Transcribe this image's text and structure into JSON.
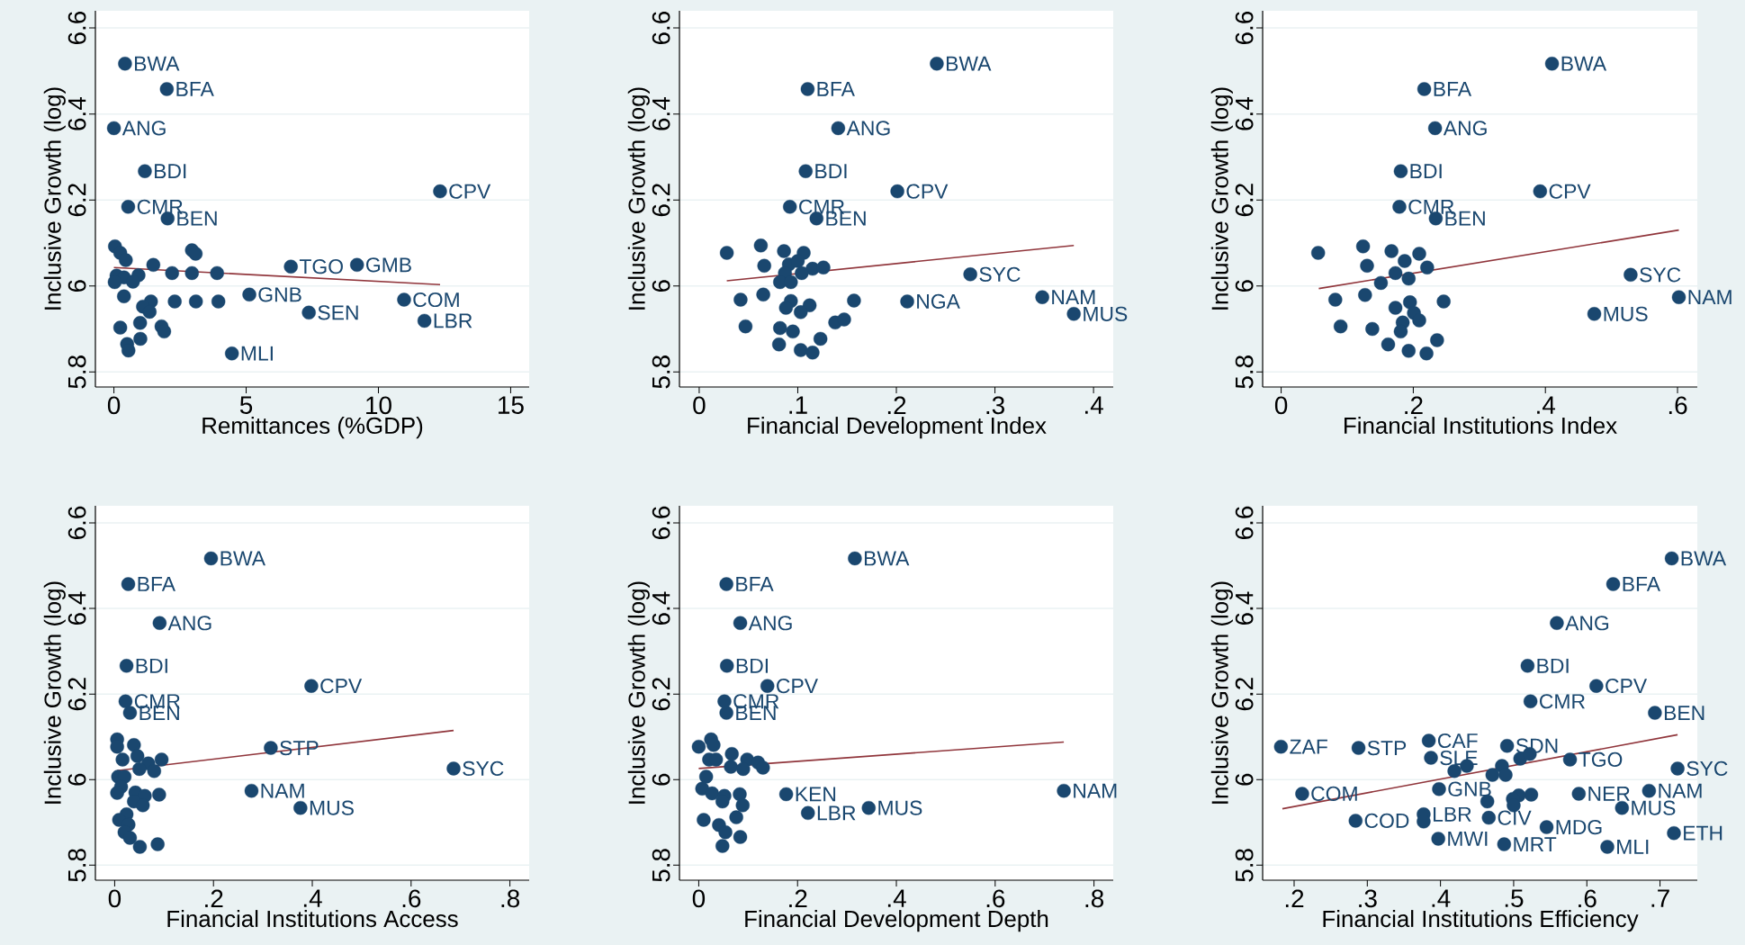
{
  "chart_data": [
    {
      "type": "scatter",
      "xlabel": "Remittances (%GDP)",
      "ylabel": "Inclusive Growth (log)",
      "xlim": [
        -0.7,
        15.7
      ],
      "ylim": [
        5.765,
        6.64
      ],
      "xticks": [
        0,
        5,
        10,
        15
      ],
      "yticks": [
        5.8,
        6,
        6.2,
        6.4,
        6.6
      ],
      "grid": "y",
      "marker": "circle",
      "series": [
        {
          "color": "#1a476f",
          "x": [
            0.42,
            2.0,
            0.0,
            1.17,
            0.54,
            2.03,
            12.33,
            0.04,
            0.24,
            0.45,
            2.95,
            3.09,
            1.49,
            6.69,
            9.19,
            3.9,
            0.1,
            0.38,
            0.93,
            2.2,
            2.95,
            0.03,
            0.72,
            0.38,
            5.12,
            10.97,
            3.95,
            2.3,
            1.4,
            3.1,
            1.1,
            1.35,
            7.37,
            11.74,
            0.99,
            0.24,
            1.8,
            1.9,
            0.5,
            1.0,
            0.55,
            4.46
          ],
          "values": [
            6.517,
            6.458,
            6.367,
            6.267,
            6.184,
            6.157,
            6.22,
            6.092,
            6.077,
            6.06,
            6.083,
            6.075,
            6.049,
            6.045,
            6.049,
            6.03,
            6.024,
            6.02,
            6.025,
            6.03,
            6.03,
            6.009,
            6.01,
            5.976,
            5.98,
            5.968,
            5.964,
            5.964,
            5.964,
            5.964,
            5.952,
            5.94,
            5.938,
            5.919,
            5.914,
            5.903,
            5.906,
            5.894,
            5.865,
            5.877,
            5.85,
            5.843
          ]
        },
        {
          "type": "line",
          "marker": "none",
          "color": "#90353b",
          "x": [
            0,
            12.33
          ],
          "values": [
            6.043,
            6.003
          ]
        }
      ],
      "annotations": [
        {
          "text": "BWA",
          "x": 0.42,
          "y": 6.517
        },
        {
          "text": "BFA",
          "x": 2.0,
          "y": 6.458
        },
        {
          "text": "ANG",
          "x": 0.0,
          "y": 6.367
        },
        {
          "text": "BDI",
          "x": 1.17,
          "y": 6.267
        },
        {
          "text": "CMR",
          "x": 0.54,
          "y": 6.184
        },
        {
          "text": "BEN",
          "x": 2.03,
          "y": 6.157
        },
        {
          "text": "CPV",
          "x": 12.33,
          "y": 6.22
        },
        {
          "text": "TGO",
          "x": 6.69,
          "y": 6.045
        },
        {
          "text": "GMB",
          "x": 9.19,
          "y": 6.049
        },
        {
          "text": "GNB",
          "x": 5.12,
          "y": 5.98
        },
        {
          "text": "COM",
          "x": 10.97,
          "y": 5.968
        },
        {
          "text": "SEN",
          "x": 7.37,
          "y": 5.938
        },
        {
          "text": "LBR",
          "x": 11.74,
          "y": 5.919
        },
        {
          "text": "MLI",
          "x": 4.46,
          "y": 5.843
        }
      ]
    },
    {
      "type": "scatter",
      "xlabel": "Financial Development Index",
      "ylabel": "Inclusive Growth (log)",
      "xlim": [
        -0.02,
        0.42
      ],
      "ylim": [
        5.765,
        6.64
      ],
      "xticks": [
        0,
        {
          "value": 0.1,
          "label": ".1"
        },
        {
          "value": 0.2,
          "label": ".2"
        },
        {
          "value": 0.3,
          "label": ".3"
        },
        {
          "value": 0.4,
          "label": ".4"
        }
      ],
      "yticks": [
        5.8,
        6,
        6.2,
        6.4,
        6.6
      ],
      "grid": "y",
      "marker": "circle",
      "series": [
        {
          "color": "#1a476f",
          "x": [
            0.241,
            0.11,
            0.141,
            0.108,
            0.201,
            0.092,
            0.119,
            0.0625,
            0.028,
            0.086,
            0.106,
            0.066,
            0.091,
            0.1,
            0.115,
            0.126,
            0.087,
            0.104,
            0.082,
            0.093,
            0.275,
            0.348,
            0.38,
            0.211,
            0.157,
            0.042,
            0.065,
            0.093,
            0.112,
            0.088,
            0.103,
            0.138,
            0.147,
            0.047,
            0.082,
            0.095,
            0.123,
            0.081,
            0.103,
            0.115
          ],
          "values": [
            6.517,
            6.458,
            6.367,
            6.267,
            6.22,
            6.184,
            6.157,
            6.094,
            6.077,
            6.081,
            6.077,
            6.047,
            6.05,
            6.058,
            6.04,
            6.043,
            6.03,
            6.03,
            6.009,
            6.009,
            6.027,
            5.974,
            5.935,
            5.964,
            5.966,
            5.968,
            5.98,
            5.965,
            5.955,
            5.949,
            5.939,
            5.915,
            5.922,
            5.906,
            5.902,
            5.894,
            5.877,
            5.864,
            5.851,
            5.845
          ]
        },
        {
          "type": "line",
          "marker": "none",
          "color": "#90353b",
          "x": [
            0.028,
            0.38
          ],
          "values": [
            6.012,
            6.094
          ]
        }
      ],
      "annotations": [
        {
          "text": "BWA",
          "x": 0.241,
          "y": 6.517
        },
        {
          "text": "BFA",
          "x": 0.11,
          "y": 6.458
        },
        {
          "text": "ANG",
          "x": 0.141,
          "y": 6.367
        },
        {
          "text": "BDI",
          "x": 0.108,
          "y": 6.267
        },
        {
          "text": "CPV",
          "x": 0.201,
          "y": 6.22
        },
        {
          "text": "CMR",
          "x": 0.092,
          "y": 6.184
        },
        {
          "text": "BEN",
          "x": 0.119,
          "y": 6.157
        },
        {
          "text": "SYC",
          "x": 0.275,
          "y": 6.027
        },
        {
          "text": "NAM",
          "x": 0.348,
          "y": 5.974
        },
        {
          "text": "MUS",
          "x": 0.38,
          "y": 5.935
        },
        {
          "text": "NGA",
          "x": 0.211,
          "y": 5.964
        }
      ]
    },
    {
      "type": "scatter",
      "xlabel": "Financial Institutions Index",
      "ylabel": "Inclusive Growth (log)",
      "xlim": [
        -0.028,
        0.63
      ],
      "ylim": [
        5.765,
        6.64
      ],
      "xticks": [
        0,
        {
          "value": 0.2,
          "label": ".2"
        },
        {
          "value": 0.4,
          "label": ".4"
        },
        {
          "value": 0.6,
          "label": ".6"
        }
      ],
      "yticks": [
        5.8,
        6,
        6.2,
        6.4,
        6.6
      ],
      "grid": "y",
      "marker": "circle",
      "series": [
        {
          "color": "#1a476f",
          "x": [
            0.41,
            0.2166,
            0.233,
            0.181,
            0.392,
            0.179,
            0.234,
            0.124,
            0.056,
            0.167,
            0.209,
            0.13,
            0.187,
            0.221,
            0.173,
            0.193,
            0.151,
            0.529,
            0.602,
            0.474,
            0.082,
            0.127,
            0.173,
            0.195,
            0.246,
            0.201,
            0.209,
            0.09,
            0.138,
            0.184,
            0.181,
            0.236,
            0.162,
            0.193,
            0.22
          ],
          "values": [
            6.517,
            6.458,
            6.367,
            6.267,
            6.22,
            6.184,
            6.157,
            6.092,
            6.077,
            6.081,
            6.075,
            6.047,
            6.058,
            6.043,
            6.03,
            6.017,
            6.007,
            6.026,
            5.974,
            5.935,
            5.968,
            5.979,
            5.949,
            5.962,
            5.964,
            5.937,
            5.92,
            5.906,
            5.9,
            5.915,
            5.894,
            5.874,
            5.864,
            5.849,
            5.843
          ]
        },
        {
          "type": "line",
          "marker": "none",
          "color": "#90353b",
          "x": [
            0.057,
            0.602
          ],
          "values": [
            5.994,
            6.13
          ]
        }
      ],
      "annotations": [
        {
          "text": "BWA",
          "x": 0.41,
          "y": 6.517
        },
        {
          "text": "BFA",
          "x": 0.2166,
          "y": 6.458
        },
        {
          "text": "ANG",
          "x": 0.233,
          "y": 6.367
        },
        {
          "text": "BDI",
          "x": 0.181,
          "y": 6.267
        },
        {
          "text": "CPV",
          "x": 0.392,
          "y": 6.22
        },
        {
          "text": "CMR",
          "x": 0.179,
          "y": 6.184
        },
        {
          "text": "BEN",
          "x": 0.234,
          "y": 6.157
        },
        {
          "text": "SYC",
          "x": 0.529,
          "y": 6.026
        },
        {
          "text": "NAM",
          "x": 0.602,
          "y": 5.974
        },
        {
          "text": "MUS",
          "x": 0.474,
          "y": 5.935
        }
      ]
    },
    {
      "type": "scatter",
      "xlabel": "Financial Institutions Access",
      "ylabel": "Inclusive Growth (log)",
      "xlim": [
        -0.039,
        0.839
      ],
      "ylim": [
        5.765,
        6.64
      ],
      "xticks": [
        0,
        {
          "value": 0.2,
          "label": ".2"
        },
        {
          "value": 0.4,
          "label": ".4"
        },
        {
          "value": 0.6,
          "label": ".6"
        },
        {
          "value": 0.8,
          "label": ".8"
        }
      ],
      "yticks": [
        5.8,
        6,
        6.2,
        6.4,
        6.6
      ],
      "grid": "y",
      "marker": "circle",
      "series": [
        {
          "color": "#1a476f",
          "x": [
            0.195,
            0.0275,
            0.091,
            0.024,
            0.398,
            0.022,
            0.031,
            0.005,
            0.005,
            0.039,
            0.316,
            0.686,
            0.277,
            0.376,
            0.016,
            0.046,
            0.068,
            0.095,
            0.05,
            0.08,
            0.007,
            0.02,
            0.013,
            0.042,
            0.061,
            0.005,
            0.09,
            0.039,
            0.057,
            0.024,
            0.009,
            0.028,
            0.02,
            0.031,
            0.051,
            0.087
          ],
          "values": [
            6.517,
            6.457,
            6.366,
            6.266,
            6.219,
            6.183,
            6.156,
            6.094,
            6.077,
            6.081,
            6.074,
            6.026,
            5.974,
            5.934,
            6.047,
            6.055,
            6.038,
            6.047,
            6.025,
            6.02,
            6.007,
            6.007,
            5.983,
            5.97,
            5.962,
            5.969,
            5.965,
            5.949,
            5.94,
            5.919,
            5.906,
            5.895,
            5.877,
            5.864,
            5.843,
            5.849
          ]
        },
        {
          "type": "line",
          "marker": "none",
          "color": "#90353b",
          "x": [
            0.005,
            0.686
          ],
          "values": [
            6.021,
            6.115
          ]
        }
      ],
      "annotations": [
        {
          "text": "BWA",
          "x": 0.195,
          "y": 6.517
        },
        {
          "text": "BFA",
          "x": 0.0275,
          "y": 6.457
        },
        {
          "text": "ANG",
          "x": 0.091,
          "y": 6.366
        },
        {
          "text": "BDI",
          "x": 0.024,
          "y": 6.266
        },
        {
          "text": "CPV",
          "x": 0.398,
          "y": 6.219
        },
        {
          "text": "CMR",
          "x": 0.022,
          "y": 6.183
        },
        {
          "text": "BEN",
          "x": 0.031,
          "y": 6.156
        },
        {
          "text": "STP",
          "x": 0.316,
          "y": 6.074
        },
        {
          "text": "SYC",
          "x": 0.686,
          "y": 6.026
        },
        {
          "text": "NAM",
          "x": 0.277,
          "y": 5.974
        },
        {
          "text": "MUS",
          "x": 0.376,
          "y": 5.934
        }
      ]
    },
    {
      "type": "scatter",
      "xlabel": "Financial Development Depth",
      "ylabel": "Inclusive Growth (log)",
      "xlim": [
        -0.039,
        0.839
      ],
      "ylim": [
        5.765,
        6.64
      ],
      "xticks": [
        0,
        {
          "value": 0.2,
          "label": ".2"
        },
        {
          "value": 0.4,
          "label": ".4"
        },
        {
          "value": 0.6,
          "label": ".6"
        },
        {
          "value": 0.8,
          "label": ".8"
        }
      ],
      "yticks": [
        5.8,
        6,
        6.2,
        6.4,
        6.6
      ],
      "grid": "y",
      "marker": "circle",
      "series": [
        {
          "color": "#1a476f",
          "x": [
            0.316,
            0.056,
            0.084,
            0.057,
            0.139,
            0.052,
            0.056,
            0.025,
            0.0,
            0.03,
            0.067,
            0.098,
            0.021,
            0.035,
            0.12,
            0.065,
            0.09,
            0.13,
            0.015,
            0.007,
            0.027,
            0.052,
            0.083,
            0.177,
            0.221,
            0.344,
            0.739,
            0.048,
            0.089,
            0.076,
            0.01,
            0.041,
            0.054,
            0.084,
            0.048
          ],
          "values": [
            6.517,
            6.457,
            6.366,
            6.266,
            6.219,
            6.183,
            6.156,
            6.094,
            6.077,
            6.081,
            6.06,
            6.047,
            6.047,
            6.047,
            6.04,
            6.03,
            6.025,
            6.028,
            6.007,
            5.979,
            5.968,
            5.962,
            5.966,
            5.966,
            5.922,
            5.934,
            5.974,
            5.949,
            5.94,
            5.912,
            5.906,
            5.894,
            5.877,
            5.866,
            5.845
          ]
        },
        {
          "type": "line",
          "marker": "none",
          "color": "#90353b",
          "x": [
            0.0,
            0.739
          ],
          "values": [
            6.026,
            6.088
          ]
        }
      ],
      "annotations": [
        {
          "text": "BWA",
          "x": 0.316,
          "y": 6.517
        },
        {
          "text": "BFA",
          "x": 0.056,
          "y": 6.457
        },
        {
          "text": "ANG",
          "x": 0.084,
          "y": 6.366
        },
        {
          "text": "BDI",
          "x": 0.057,
          "y": 6.266
        },
        {
          "text": "CPV",
          "x": 0.139,
          "y": 6.219
        },
        {
          "text": "CMR",
          "x": 0.052,
          "y": 6.183
        },
        {
          "text": "BEN",
          "x": 0.056,
          "y": 6.156
        },
        {
          "text": "KEN",
          "x": 0.177,
          "y": 5.966
        },
        {
          "text": "LBR",
          "x": 0.221,
          "y": 5.922
        },
        {
          "text": "MUS",
          "x": 0.344,
          "y": 5.934
        },
        {
          "text": "NAM",
          "x": 0.739,
          "y": 5.974
        }
      ]
    },
    {
      "type": "scatter",
      "xlabel": "Financial Institutions Efficiency",
      "ylabel": "Inclusive Growth (log)",
      "xlim": [
        0.157,
        0.751
      ],
      "ylim": [
        5.765,
        6.64
      ],
      "xticks": [
        {
          "value": 0.2,
          "label": ".2"
        },
        {
          "value": 0.3,
          "label": ".3"
        },
        {
          "value": 0.4,
          "label": ".4"
        },
        {
          "value": 0.5,
          "label": ".5"
        },
        {
          "value": 0.6,
          "label": ".6"
        },
        {
          "value": 0.7,
          "label": ".7"
        }
      ],
      "yticks": [
        5.8,
        6,
        6.2,
        6.4,
        6.6
      ],
      "grid": "y",
      "marker": "circle",
      "series": [
        {
          "color": "#1a476f",
          "x": [
            0.716,
            0.636,
            0.559,
            0.519,
            0.613,
            0.523,
            0.693,
            0.384,
            0.182,
            0.288,
            0.491,
            0.387,
            0.577,
            0.509,
            0.522,
            0.419,
            0.436,
            0.484,
            0.471,
            0.489,
            0.724,
            0.398,
            0.211,
            0.589,
            0.685,
            0.524,
            0.507,
            0.499,
            0.464,
            0.5,
            0.648,
            0.377,
            0.377,
            0.466,
            0.284,
            0.545,
            0.719,
            0.397,
            0.487,
            0.628
          ],
          "values": [
            6.517,
            6.457,
            6.366,
            6.266,
            6.219,
            6.183,
            6.156,
            6.091,
            6.077,
            6.074,
            6.079,
            6.051,
            6.047,
            6.049,
            6.06,
            6.02,
            6.032,
            6.032,
            6.011,
            6.011,
            6.026,
            5.978,
            5.967,
            5.967,
            5.974,
            5.965,
            5.963,
            5.955,
            5.949,
            5.94,
            5.934,
            5.919,
            5.902,
            5.911,
            5.904,
            5.889,
            5.875,
            5.862,
            5.849,
            5.843
          ]
        },
        {
          "type": "line",
          "marker": "none",
          "color": "#90353b",
          "x": [
            0.184,
            0.724
          ],
          "values": [
            5.932,
            6.105
          ]
        }
      ],
      "annotations": [
        {
          "text": "BWA",
          "x": 0.716,
          "y": 6.517
        },
        {
          "text": "BFA",
          "x": 0.636,
          "y": 6.457
        },
        {
          "text": "ANG",
          "x": 0.559,
          "y": 6.366
        },
        {
          "text": "BDI",
          "x": 0.519,
          "y": 6.266
        },
        {
          "text": "CPV",
          "x": 0.613,
          "y": 6.219
        },
        {
          "text": "CMR",
          "x": 0.523,
          "y": 6.183
        },
        {
          "text": "BEN",
          "x": 0.693,
          "y": 6.156
        },
        {
          "text": "CAF",
          "x": 0.384,
          "y": 6.091
        },
        {
          "text": "ZAF",
          "x": 0.182,
          "y": 6.077
        },
        {
          "text": "STP",
          "x": 0.288,
          "y": 6.074
        },
        {
          "text": "SDN",
          "x": 0.491,
          "y": 6.079
        },
        {
          "text": "SLE",
          "x": 0.387,
          "y": 6.051
        },
        {
          "text": "TGO",
          "x": 0.577,
          "y": 6.047
        },
        {
          "text": "SYC",
          "x": 0.724,
          "y": 6.026
        },
        {
          "text": "GNB",
          "x": 0.398,
          "y": 5.978
        },
        {
          "text": "COM",
          "x": 0.211,
          "y": 5.967
        },
        {
          "text": "NER",
          "x": 0.589,
          "y": 5.967
        },
        {
          "text": "NAM",
          "x": 0.685,
          "y": 5.974
        },
        {
          "text": "MUS",
          "x": 0.648,
          "y": 5.934
        },
        {
          "text": "LBR",
          "x": 0.377,
          "y": 5.919
        },
        {
          "text": "CIV",
          "x": 0.466,
          "y": 5.911
        },
        {
          "text": "COD",
          "x": 0.284,
          "y": 5.904
        },
        {
          "text": "MDG",
          "x": 0.545,
          "y": 5.889
        },
        {
          "text": "ETH",
          "x": 0.719,
          "y": 5.875
        },
        {
          "text": "MWI",
          "x": 0.397,
          "y": 5.862
        },
        {
          "text": "MRT",
          "x": 0.487,
          "y": 5.849
        },
        {
          "text": "MLI",
          "x": 0.628,
          "y": 5.843
        }
      ]
    }
  ]
}
